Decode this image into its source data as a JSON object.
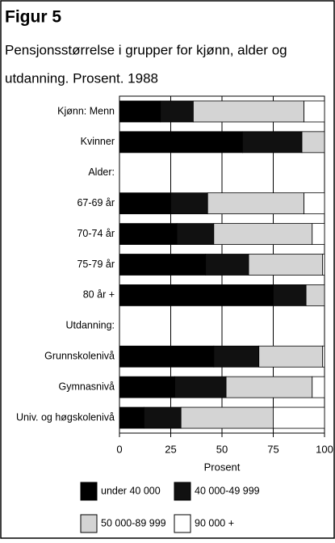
{
  "chart_data": {
    "type": "stacked-bar-horizontal",
    "title": "Figur 5",
    "subtitle": [
      "Pensjonsstørrelse i grupper for kjønn, alder og",
      "utdanning. Prosent. 1988"
    ],
    "xlabel": "Prosent",
    "categories": [
      "Kjønn: Menn",
      "Kvinner",
      "Alder:",
      "67-69 år",
      "70-74 år",
      "75-79 år",
      "80 år +",
      "Utdanning:",
      "Grunnskolenivå",
      "Gymnasnivå",
      "Univ. og høgskolenivå"
    ],
    "series": [
      {
        "name": "under 40 000",
        "color": "#000000",
        "values": [
          20,
          60,
          null,
          25,
          28,
          42,
          75,
          null,
          46,
          27,
          12
        ]
      },
      {
        "name": "40 000-49 999",
        "color": "#111111",
        "values": [
          16,
          29,
          null,
          18,
          18,
          21,
          16,
          null,
          22,
          25,
          18
        ]
      },
      {
        "name": "50 000-89 999",
        "color": "#d4d4d4",
        "values": [
          54,
          11,
          null,
          47,
          48,
          36,
          9,
          null,
          31,
          42,
          45
        ]
      },
      {
        "name": "90 000 +",
        "color": "#ffffff",
        "values": [
          10,
          0,
          null,
          10,
          6,
          1,
          0,
          null,
          1,
          6,
          25
        ]
      }
    ],
    "xlim": [
      0,
      100
    ],
    "xticks": [
      0,
      25,
      50,
      75,
      100
    ],
    "grid": true
  }
}
